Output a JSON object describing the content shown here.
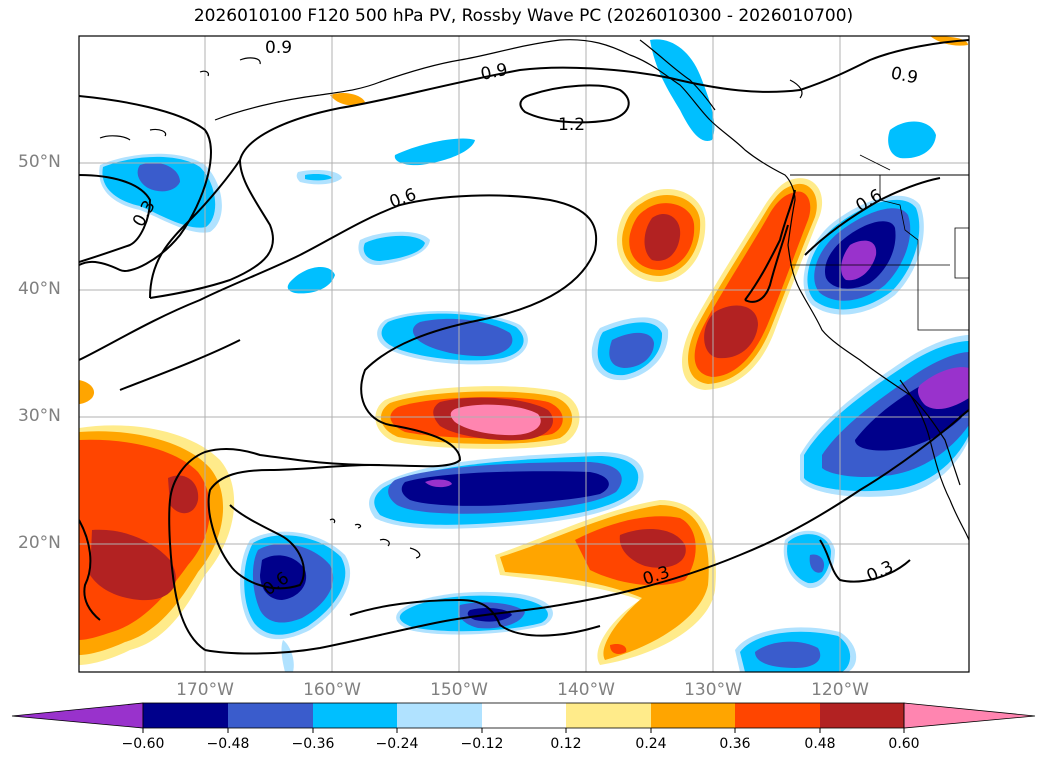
{
  "title": "2026010100 F120 500 hPa PV, Rossby Wave PC (2026010300 - 2026010700)",
  "latitude_labels": [
    "50°N",
    "40°N",
    "30°N",
    "20°N"
  ],
  "longitude_labels": [
    "170°W",
    "160°W",
    "150°W",
    "140°W",
    "130°W",
    "120°W"
  ],
  "contour_labels": [
    "0.9",
    "0.9",
    "0.9",
    "1.2",
    "0.6",
    "0.3",
    "0.6",
    "0.3",
    "0.3",
    "0.6"
  ],
  "colorbar": {
    "ticks": [
      "−0.60",
      "−0.48",
      "−0.36",
      "−0.24",
      "−0.12",
      "0.12",
      "0.24",
      "0.36",
      "0.48",
      "0.60"
    ],
    "colors": [
      "#9932cc",
      "#00008b",
      "#3a5ccc",
      "#00bfff",
      "#b0e2ff",
      "#ffffff",
      "#ffeb8a",
      "#ffa500",
      "#ff4500",
      "#b22222",
      "#ff85b0"
    ]
  },
  "chart_data": {
    "type": "map",
    "title": "2026010100 F120 500 hPa PV, Rossby Wave PC (2026010300 - 2026010700)",
    "variable": "500 hPa PV (contours) with Rossby Wave PC anomaly (shaded)",
    "extent": {
      "lon": [
        -180,
        -110
      ],
      "lat": [
        10,
        60
      ]
    },
    "contour_levels": [
      0.3,
      0.6,
      0.9,
      1.2
    ],
    "shading_levels": [
      -0.6,
      -0.48,
      -0.36,
      -0.24,
      -0.12,
      0.12,
      0.24,
      0.36,
      0.48,
      0.6
    ]
  }
}
